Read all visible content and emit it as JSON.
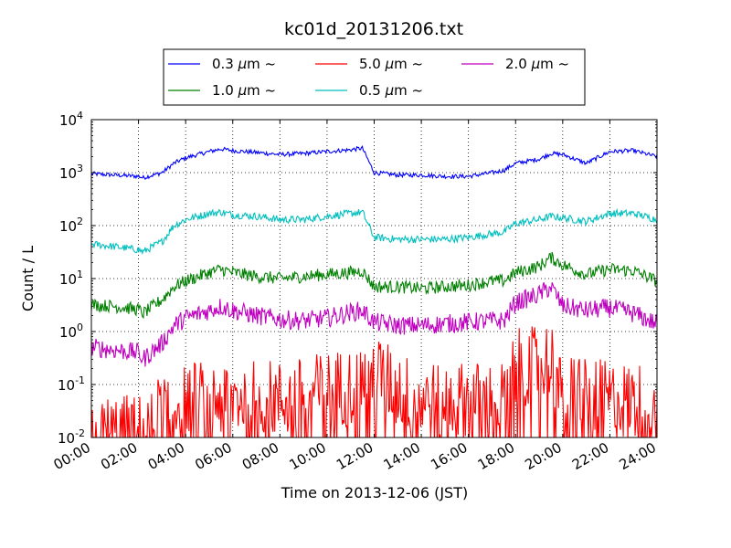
{
  "chart_data": {
    "type": "line",
    "title": "kc01d_20131206.txt",
    "xlabel": "Time on 2013-12-06 (JST)",
    "ylabel": "Count / L",
    "y_scale": "log",
    "ylim": [
      0.01,
      10000
    ],
    "xlim_hours": [
      0,
      24
    ],
    "grid": true,
    "legend_position": "top-center, above plot",
    "x_ticks": [
      "00:00",
      "02:00",
      "04:00",
      "06:00",
      "08:00",
      "10:00",
      "12:00",
      "14:00",
      "16:00",
      "18:00",
      "20:00",
      "22:00",
      "24:00"
    ],
    "y_ticks": [
      {
        "base": "10",
        "exp": "-2"
      },
      {
        "base": "10",
        "exp": "-1"
      },
      {
        "base": "10",
        "exp": "0"
      },
      {
        "base": "10",
        "exp": "1"
      },
      {
        "base": "10",
        "exp": "2"
      },
      {
        "base": "10",
        "exp": "3"
      },
      {
        "base": "10",
        "exp": "4"
      }
    ],
    "series": [
      {
        "name": "0.3 μm ~",
        "color": "#0000ff",
        "x_hours": [
          0,
          1,
          2,
          2.2,
          3,
          3.5,
          4,
          5,
          5.5,
          6,
          7,
          8,
          9,
          10,
          11,
          11.5,
          12,
          13,
          14,
          15,
          16,
          17,
          17.5,
          18,
          19,
          19.5,
          20,
          21,
          22,
          23,
          24
        ],
        "values": [
          950,
          900,
          850,
          800,
          1000,
          1500,
          1900,
          2500,
          2800,
          2600,
          2400,
          2200,
          2300,
          2500,
          2700,
          2900,
          1000,
          900,
          900,
          850,
          850,
          1000,
          1100,
          1500,
          1800,
          2300,
          2200,
          1500,
          2500,
          2600,
          2000
        ],
        "noise": 0.04
      },
      {
        "name": "0.5 μm ~",
        "color": "#00bfbf",
        "x_hours": [
          0,
          1,
          2,
          2.2,
          3,
          3.5,
          4,
          5,
          5.5,
          6,
          7,
          8,
          9,
          10,
          11,
          11.5,
          12,
          13,
          14,
          15,
          16,
          17,
          17.5,
          18,
          19,
          19.5,
          20,
          21,
          22,
          23,
          24
        ],
        "values": [
          45,
          40,
          35,
          32,
          50,
          100,
          130,
          170,
          180,
          160,
          150,
          130,
          130,
          150,
          170,
          180,
          60,
          55,
          55,
          55,
          60,
          70,
          75,
          110,
          130,
          150,
          140,
          120,
          170,
          170,
          130
        ],
        "noise": 0.07
      },
      {
        "name": "1.0 μm ~",
        "color": "#008000",
        "x_hours": [
          0,
          1,
          2,
          2.2,
          3,
          3.5,
          4,
          5,
          5.5,
          6,
          7,
          8,
          9,
          10,
          11,
          11.5,
          12,
          13,
          14,
          15,
          16,
          17,
          17.5,
          18,
          19,
          19.5,
          20,
          21,
          22,
          23,
          24
        ],
        "values": [
          3.2,
          3,
          2.6,
          2.2,
          4,
          7,
          9,
          13,
          15,
          13,
          11,
          10,
          11,
          12,
          13,
          14,
          7,
          7,
          6.5,
          7,
          7.5,
          9,
          9,
          13,
          17,
          25,
          18,
          12,
          15,
          14,
          9
        ],
        "noise": 0.12
      },
      {
        "name": "2.0 μm ~",
        "color": "#bf00bf",
        "x_hours": [
          0,
          1,
          2,
          2.2,
          3,
          3.5,
          4,
          5,
          5.5,
          6,
          7,
          8,
          9,
          10,
          11,
          11.5,
          12,
          13,
          14,
          15,
          16,
          17,
          17.5,
          18,
          19,
          19.5,
          20,
          21,
          22,
          23,
          24
        ],
        "values": [
          0.5,
          0.45,
          0.4,
          0.3,
          0.6,
          1.3,
          1.8,
          2.5,
          3,
          2.5,
          2,
          1.7,
          1.6,
          1.8,
          2.3,
          2.5,
          1.5,
          1.3,
          1.3,
          1.4,
          1.5,
          1.6,
          1.6,
          3.5,
          5,
          7,
          3,
          2.5,
          2.8,
          2.2,
          1.4
        ],
        "noise": 0.18
      },
      {
        "name": "5.0 μm ~",
        "color": "#ff0000",
        "x_hours": [
          0,
          2,
          2.5,
          3,
          4,
          5,
          6,
          7,
          8,
          9,
          10,
          11,
          11.5,
          12,
          13,
          14,
          15,
          16,
          17,
          17.5,
          18,
          19,
          19.5,
          20,
          20.5,
          21,
          22,
          23,
          24
        ],
        "values": [
          0.012,
          0.012,
          0.012,
          0.04,
          0.05,
          0.055,
          0.055,
          0.06,
          0.05,
          0.06,
          0.08,
          0.09,
          0.12,
          0.18,
          0.08,
          0.05,
          0.05,
          0.05,
          0.05,
          0.05,
          0.2,
          0.25,
          0.35,
          0.04,
          0.1,
          0.07,
          0.05,
          0.05,
          0.04
        ],
        "noise": 0.75
      }
    ],
    "legend": [
      {
        "series": 0,
        "prefix": "0.3 ",
        "unit": "μm",
        "suffix": "~"
      },
      {
        "series": 2,
        "prefix": "1.0 ",
        "unit": "μm",
        "suffix": "~"
      },
      {
        "series": 4,
        "prefix": "5.0 ",
        "unit": "μm",
        "suffix": "~"
      },
      {
        "series": 1,
        "prefix": "0.5 ",
        "unit": "μm",
        "suffix": "~"
      },
      {
        "series": 3,
        "prefix": "2.0 ",
        "unit": "μm",
        "suffix": "~"
      }
    ]
  }
}
